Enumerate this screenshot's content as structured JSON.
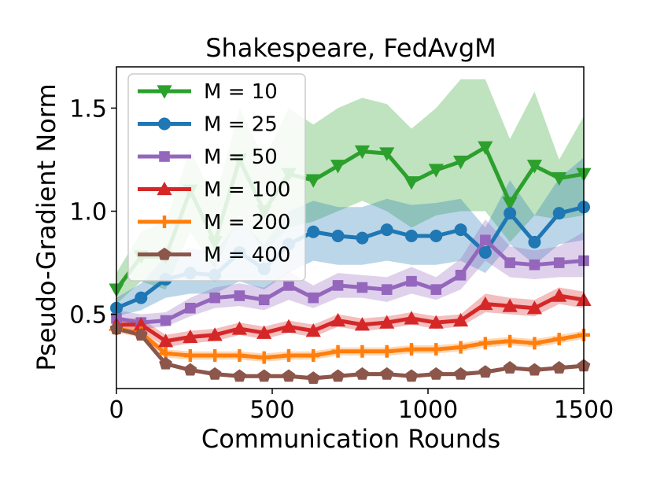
{
  "chart_data": {
    "type": "line",
    "title": "Shakespeare, FedAvgM",
    "xlabel": "Communication Rounds",
    "ylabel": "Pseudo-Gradient Norm",
    "xlim": [
      0,
      1500
    ],
    "ylim": [
      0.14,
      1.7
    ],
    "xticks": [
      0,
      500,
      1000,
      1500
    ],
    "xtick_labels": [
      "0",
      "500",
      "1000",
      "1500"
    ],
    "yticks": [
      0.5,
      1.0,
      1.5
    ],
    "ytick_labels": [
      "0.5",
      "1.0",
      "1.5"
    ],
    "grid": false,
    "legend_position": "upper-left",
    "x": [
      0,
      79,
      158,
      237,
      316,
      395,
      474,
      553,
      632,
      711,
      789,
      868,
      947,
      1026,
      1105,
      1184,
      1263,
      1342,
      1421,
      1500
    ],
    "series": [
      {
        "name": "M = 10",
        "color": "#2ca02c",
        "marker": "triangle-down",
        "values": [
          0.62,
          0.78,
          0.78,
          1.1,
          0.85,
          1.25,
          1.0,
          1.18,
          1.15,
          1.22,
          1.29,
          1.28,
          1.14,
          1.2,
          1.24,
          1.31,
          1.04,
          1.22,
          1.16,
          1.18
        ],
        "lower": [
          0.55,
          0.66,
          0.62,
          0.9,
          0.72,
          0.98,
          0.8,
          0.92,
          0.95,
          1.0,
          1.05,
          1.0,
          0.92,
          0.98,
          1.0,
          1.0,
          0.85,
          0.98,
          0.96,
          0.98
        ],
        "upper": [
          0.7,
          0.9,
          0.95,
          1.3,
          1.05,
          1.5,
          1.25,
          1.5,
          1.42,
          1.5,
          1.55,
          1.52,
          1.4,
          1.5,
          1.64,
          1.64,
          1.35,
          1.58,
          1.25,
          1.46
        ]
      },
      {
        "name": "M = 25",
        "color": "#1f77b4",
        "marker": "circle",
        "values": [
          0.53,
          0.58,
          0.67,
          0.7,
          0.69,
          0.8,
          0.72,
          0.84,
          0.9,
          0.88,
          0.87,
          0.91,
          0.88,
          0.88,
          0.91,
          0.8,
          0.99,
          0.85,
          0.99,
          1.02
        ],
        "lower": [
          0.49,
          0.52,
          0.58,
          0.6,
          0.6,
          0.66,
          0.62,
          0.7,
          0.76,
          0.74,
          0.74,
          0.76,
          0.74,
          0.74,
          0.76,
          0.7,
          0.84,
          0.74,
          0.84,
          0.86
        ],
        "upper": [
          0.58,
          0.65,
          0.78,
          0.82,
          0.8,
          0.96,
          0.84,
          1.0,
          1.05,
          1.02,
          1.02,
          1.06,
          1.03,
          1.04,
          1.06,
          0.92,
          1.15,
          0.98,
          1.16,
          1.26
        ]
      },
      {
        "name": "M = 50",
        "color": "#9467bd",
        "marker": "square",
        "values": [
          0.48,
          0.46,
          0.47,
          0.53,
          0.58,
          0.59,
          0.57,
          0.64,
          0.58,
          0.64,
          0.63,
          0.62,
          0.66,
          0.62,
          0.69,
          0.86,
          0.75,
          0.74,
          0.75,
          0.76
        ],
        "lower": [
          0.45,
          0.43,
          0.44,
          0.49,
          0.53,
          0.54,
          0.52,
          0.57,
          0.53,
          0.58,
          0.58,
          0.56,
          0.6,
          0.57,
          0.62,
          0.76,
          0.68,
          0.67,
          0.68,
          0.68
        ],
        "upper": [
          0.52,
          0.5,
          0.51,
          0.58,
          0.63,
          0.65,
          0.63,
          0.71,
          0.64,
          0.7,
          0.69,
          0.68,
          0.73,
          0.68,
          0.77,
          0.96,
          0.83,
          0.81,
          0.83,
          0.9
        ]
      },
      {
        "name": "M = 100",
        "color": "#d62728",
        "marker": "triangle-up",
        "values": [
          0.45,
          0.45,
          0.37,
          0.39,
          0.4,
          0.43,
          0.41,
          0.44,
          0.42,
          0.47,
          0.45,
          0.46,
          0.48,
          0.46,
          0.47,
          0.55,
          0.54,
          0.53,
          0.59,
          0.57
        ],
        "lower": [
          0.42,
          0.42,
          0.34,
          0.36,
          0.37,
          0.4,
          0.38,
          0.41,
          0.39,
          0.44,
          0.42,
          0.43,
          0.45,
          0.43,
          0.44,
          0.51,
          0.5,
          0.49,
          0.55,
          0.53
        ],
        "upper": [
          0.48,
          0.48,
          0.4,
          0.42,
          0.43,
          0.46,
          0.44,
          0.47,
          0.45,
          0.5,
          0.48,
          0.49,
          0.51,
          0.49,
          0.5,
          0.6,
          0.58,
          0.57,
          0.63,
          0.61
        ]
      },
      {
        "name": "M = 200",
        "color": "#ff7f0e",
        "marker": "plus",
        "values": [
          0.43,
          0.41,
          0.31,
          0.3,
          0.3,
          0.3,
          0.29,
          0.3,
          0.3,
          0.32,
          0.32,
          0.32,
          0.33,
          0.33,
          0.34,
          0.36,
          0.37,
          0.36,
          0.38,
          0.4
        ],
        "lower": [
          0.41,
          0.39,
          0.29,
          0.28,
          0.28,
          0.28,
          0.27,
          0.28,
          0.28,
          0.3,
          0.3,
          0.3,
          0.31,
          0.31,
          0.32,
          0.34,
          0.35,
          0.34,
          0.36,
          0.38
        ],
        "upper": [
          0.45,
          0.43,
          0.33,
          0.32,
          0.32,
          0.32,
          0.31,
          0.32,
          0.32,
          0.34,
          0.34,
          0.34,
          0.35,
          0.35,
          0.36,
          0.38,
          0.39,
          0.38,
          0.4,
          0.42
        ]
      },
      {
        "name": "M = 400",
        "color": "#8c564b",
        "marker": "pentagon",
        "values": [
          0.43,
          0.4,
          0.26,
          0.23,
          0.21,
          0.2,
          0.2,
          0.2,
          0.19,
          0.2,
          0.21,
          0.21,
          0.2,
          0.21,
          0.21,
          0.22,
          0.24,
          0.23,
          0.24,
          0.25
        ],
        "lower": [
          0.42,
          0.39,
          0.25,
          0.22,
          0.2,
          0.19,
          0.19,
          0.19,
          0.18,
          0.19,
          0.2,
          0.2,
          0.19,
          0.2,
          0.2,
          0.21,
          0.23,
          0.22,
          0.23,
          0.24
        ],
        "upper": [
          0.44,
          0.41,
          0.27,
          0.24,
          0.22,
          0.21,
          0.21,
          0.21,
          0.2,
          0.21,
          0.22,
          0.22,
          0.21,
          0.22,
          0.22,
          0.23,
          0.25,
          0.24,
          0.25,
          0.26
        ]
      }
    ]
  }
}
